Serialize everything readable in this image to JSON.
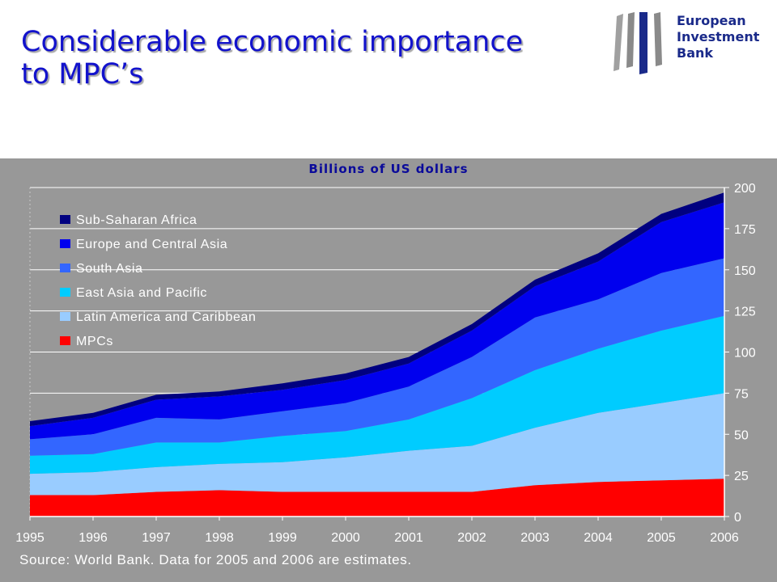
{
  "slide": {
    "title_lines": [
      "Considerable economic importance",
      "to MPC’s"
    ]
  },
  "logo": {
    "lines": [
      "European",
      "Investment",
      "Bank"
    ]
  },
  "chart_data": {
    "type": "area",
    "stacked": true,
    "title": "Billions of US dollars",
    "note": "Source: World Bank. Data for 2005 and 2006 are estimates.",
    "x": [
      "1995",
      "1996",
      "1997",
      "1998",
      "1999",
      "2000",
      "2001",
      "2002",
      "2003",
      "2004",
      "2005",
      "2006"
    ],
    "ylim": [
      0,
      200
    ],
    "yticks": [
      0,
      25,
      50,
      75,
      100,
      125,
      150,
      175,
      200
    ],
    "y_axis_side": "right",
    "grid": true,
    "legend": "top-left",
    "series": [
      {
        "name": "MPCs",
        "color": "#ff0000",
        "values": [
          13,
          13,
          15,
          16,
          15,
          15,
          15,
          15,
          19,
          21,
          22,
          23
        ]
      },
      {
        "name": "Latin America and Caribbean",
        "color": "#99ccff",
        "values": [
          13,
          14,
          15,
          16,
          18,
          21,
          25,
          28,
          35,
          42,
          47,
          52
        ]
      },
      {
        "name": "East Asia and Pacific",
        "color": "#00ccff",
        "values": [
          11,
          11,
          15,
          13,
          16,
          16,
          19,
          29,
          35,
          39,
          44,
          47
        ]
      },
      {
        "name": "South Asia",
        "color": "#3366ff",
        "values": [
          10,
          12,
          15,
          14,
          15,
          17,
          20,
          25,
          32,
          30,
          35,
          35
        ]
      },
      {
        "name": "Europe and Central Asia",
        "color": "#0000ee",
        "values": [
          8,
          10,
          11,
          14,
          13,
          14,
          14,
          16,
          19,
          23,
          31,
          34
        ]
      },
      {
        "name": "Sub-Saharan Africa",
        "color": "#000080",
        "values": [
          3,
          3,
          3,
          3,
          4,
          4,
          4,
          4,
          4,
          5,
          5,
          6
        ]
      }
    ]
  }
}
